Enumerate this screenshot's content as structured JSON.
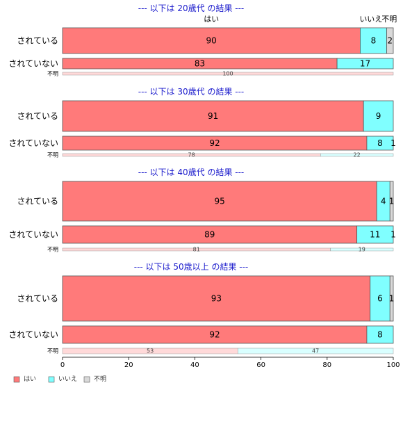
{
  "chart_data": {
    "type": "bar",
    "orientation": "horizontal",
    "stacked": true,
    "xlim": [
      0,
      100
    ],
    "x_ticks": [
      0,
      20,
      40,
      60,
      80,
      100
    ],
    "grid": false,
    "legend_position": "bottom-left",
    "colors": {
      "main": [
        "#ff7a7a",
        "#80ffff",
        "#d9d9d9"
      ],
      "light": [
        "#ffd9d9",
        "#d9ffff",
        "#eeeeee"
      ],
      "border": "#555555",
      "title": "#1a1acc"
    },
    "series_names": [
      "はい",
      "いいえ",
      "不明"
    ],
    "top_series_labels": [
      "はい",
      "いいえ",
      "不明"
    ],
    "groups": [
      {
        "title": "--- 以下は 20歳代 の結果 ---",
        "rows": [
          {
            "label": "されている",
            "values": [
              90,
              8,
              2
            ],
            "size": "large"
          },
          {
            "label": "されていない",
            "values": [
              83,
              17,
              0
            ],
            "size": "medium"
          },
          {
            "label": "不明",
            "values": [
              100,
              0,
              0
            ],
            "size": "small"
          }
        ]
      },
      {
        "title": "--- 以下は 30歳代 の結果 ---",
        "rows": [
          {
            "label": "されている",
            "values": [
              91,
              9,
              0
            ],
            "size": "large"
          },
          {
            "label": "されていない",
            "values": [
              92,
              8,
              1
            ],
            "size": "medium"
          },
          {
            "label": "不明",
            "values": [
              78,
              22,
              0
            ],
            "size": "small"
          }
        ]
      },
      {
        "title": "--- 以下は 40歳代 の結果 ---",
        "rows": [
          {
            "label": "されている",
            "values": [
              95,
              4,
              1
            ],
            "size": "large"
          },
          {
            "label": "されていない",
            "values": [
              89,
              11,
              1
            ],
            "size": "medium"
          },
          {
            "label": "不明",
            "values": [
              81,
              19,
              0
            ],
            "size": "small"
          }
        ]
      },
      {
        "title": "--- 以下は 50歳以上 の結果 ---",
        "rows": [
          {
            "label": "されている",
            "values": [
              93,
              6,
              1
            ],
            "size": "large"
          },
          {
            "label": "されていない",
            "values": [
              92,
              8,
              0
            ],
            "size": "medium"
          },
          {
            "label": "不明",
            "values": [
              53,
              47,
              0
            ],
            "size": "small"
          }
        ]
      }
    ]
  }
}
